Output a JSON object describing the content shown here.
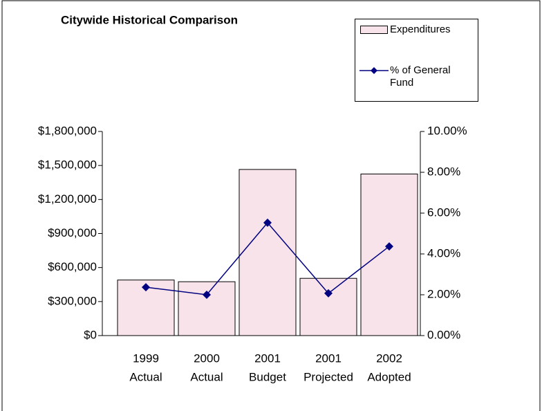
{
  "chart_data": {
    "type": "bar-line",
    "title": "Citywide  Historical Comparison",
    "categories": [
      [
        "1999",
        "Actual"
      ],
      [
        "2000",
        "Actual"
      ],
      [
        "2001",
        "Budget"
      ],
      [
        "2001",
        "Projected"
      ],
      [
        "2002",
        "Adopted"
      ]
    ],
    "series": [
      {
        "name": "Expenditures",
        "type": "bar",
        "color": "#f7e3e9",
        "values": [
          490000,
          475000,
          1465000,
          505000,
          1425000
        ]
      },
      {
        "name": "% of General Fund",
        "type": "line",
        "axis": "y2",
        "color": "#000080",
        "values": [
          2.37,
          2.0,
          5.53,
          2.07,
          4.37
        ]
      }
    ],
    "ylim": [
      0,
      1800000
    ],
    "yticks": [
      {
        "value": 0,
        "label": "$0"
      },
      {
        "value": 300000,
        "label": "$300,000"
      },
      {
        "value": 600000,
        "label": "$600,000"
      },
      {
        "value": 900000,
        "label": "$900,000"
      },
      {
        "value": 1200000,
        "label": "$1,200,000"
      },
      {
        "value": 1500000,
        "label": "$1,500,000"
      },
      {
        "value": 1800000,
        "label": "$1,800,000"
      }
    ],
    "y2lim": [
      0,
      10
    ],
    "y2ticks": [
      {
        "value": 0,
        "label": "0.00%"
      },
      {
        "value": 2,
        "label": "2.00%"
      },
      {
        "value": 4,
        "label": "4.00%"
      },
      {
        "value": 6,
        "label": "6.00%"
      },
      {
        "value": 8,
        "label": "8.00%"
      },
      {
        "value": 10,
        "label": "10.00%"
      }
    ],
    "legend": "top-right"
  }
}
